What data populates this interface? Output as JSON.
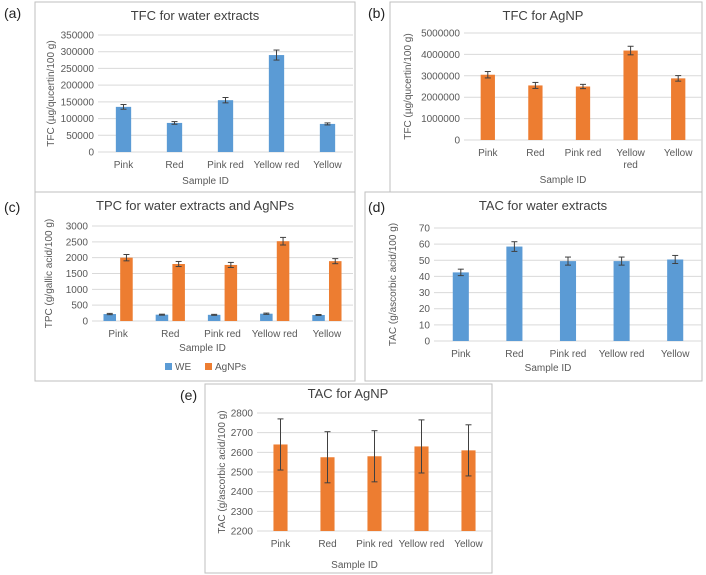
{
  "colors": {
    "we": "#5b9bd5",
    "agnp": "#ed7d31",
    "grid": "#d9d9d9",
    "border": "#bfbfbf",
    "error": "#404040"
  },
  "panel_labels": [
    "(a)",
    "(b)",
    "(c)",
    "(d)",
    "(e)"
  ],
  "chart_data": [
    {
      "id": "a",
      "type": "bar",
      "title": "TFC for water extracts",
      "xlabel": "Sample ID",
      "ylabel": "TFC (µg/qucertin/100 g)",
      "categories": [
        "Pink",
        "Red",
        "Pink red",
        "Yellow red",
        "Yellow"
      ],
      "ylim": [
        0,
        350000
      ],
      "yticks": [
        0,
        50000,
        100000,
        150000,
        200000,
        250000,
        300000,
        350000
      ],
      "series": [
        {
          "color": "we",
          "values": [
            135000,
            87000,
            155000,
            290000,
            84000
          ],
          "errors": [
            7000,
            4000,
            8000,
            15000,
            3000
          ]
        }
      ],
      "grid": true,
      "legend": false
    },
    {
      "id": "b",
      "type": "bar",
      "title": "TFC for AgNP",
      "xlabel": "Sample ID",
      "ylabel": "TFC (µg/qucertin/100 g)",
      "categories": [
        "Pink",
        "Red",
        "Pink red",
        "Yellow red",
        "Yellow"
      ],
      "ylim": [
        0,
        5000000
      ],
      "yticks": [
        0,
        1000000,
        2000000,
        3000000,
        4000000,
        5000000
      ],
      "series": [
        {
          "color": "agnp",
          "values": [
            3050000,
            2550000,
            2500000,
            4180000,
            2880000
          ],
          "errors": [
            150000,
            140000,
            100000,
            200000,
            130000
          ]
        }
      ],
      "grid": true,
      "legend": false
    },
    {
      "id": "c",
      "type": "bar",
      "title": "TPC for water extracts and AgNPs",
      "xlabel": "Sample ID",
      "ylabel": "TPC (g/gallic acid/100 g)",
      "categories": [
        "Pink",
        "Red",
        "Pink red",
        "Yellow red",
        "Yellow"
      ],
      "ylim": [
        0,
        3000
      ],
      "yticks": [
        0,
        500,
        1000,
        1500,
        2000,
        2500,
        3000
      ],
      "series": [
        {
          "name": "WE",
          "color": "we",
          "values": [
            220,
            200,
            195,
            230,
            190
          ],
          "errors": [
            20,
            15,
            15,
            20,
            15
          ]
        },
        {
          "name": "AgNPs",
          "color": "agnp",
          "values": [
            2000,
            1800,
            1770,
            2520,
            1890
          ],
          "errors": [
            100,
            80,
            80,
            120,
            80
          ]
        }
      ],
      "grid": true,
      "legend": "bottom"
    },
    {
      "id": "d",
      "type": "bar",
      "title": "TAC for water extracts",
      "xlabel": "Sample ID",
      "ylabel": "TAC (g/ascorbic acid/100 g)",
      "categories": [
        "Pink",
        "Red",
        "Pink red",
        "Yellow red",
        "Yellow"
      ],
      "ylim": [
        0,
        70
      ],
      "yticks": [
        0,
        10,
        20,
        30,
        40,
        50,
        60,
        70
      ],
      "series": [
        {
          "color": "we",
          "values": [
            42.5,
            58.5,
            49.5,
            49.5,
            50.5
          ],
          "errors": [
            2,
            3,
            2.5,
            2.5,
            2.5
          ]
        }
      ],
      "grid": true,
      "legend": false
    },
    {
      "id": "e",
      "type": "bar",
      "title": "TAC for AgNP",
      "xlabel": "Sample ID",
      "ylabel": "TAC (g/ascorbic acid/100 g)",
      "categories": [
        "Pink",
        "Red",
        "Pink red",
        "Yellow red",
        "Yellow"
      ],
      "ylim": [
        2200,
        2800
      ],
      "yticks": [
        2200,
        2300,
        2400,
        2500,
        2600,
        2700,
        2800
      ],
      "series": [
        {
          "color": "agnp",
          "values": [
            2640,
            2575,
            2580,
            2630,
            2610
          ],
          "errors": [
            130,
            130,
            130,
            135,
            130
          ]
        }
      ],
      "grid": true,
      "legend": false
    }
  ]
}
